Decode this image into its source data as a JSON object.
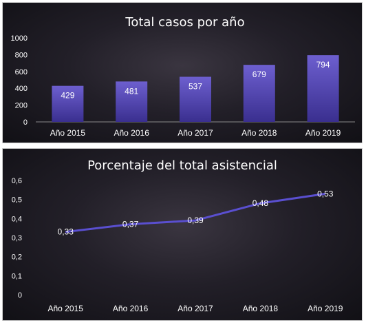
{
  "chart_data": [
    {
      "type": "bar",
      "title": "Total casos por año",
      "categories": [
        "Año 2015",
        "Año 2016",
        "Año 2017",
        "Año 2018",
        "Año 2019"
      ],
      "values": [
        429,
        481,
        537,
        679,
        794
      ],
      "data_labels": [
        "429",
        "481",
        "537",
        "679",
        "794"
      ],
      "ylim": [
        0,
        1000
      ],
      "yticks": [
        "0",
        "200",
        "400",
        "600",
        "800",
        "1000"
      ],
      "xlabel": "",
      "ylabel": "",
      "grid": false,
      "colors": {
        "bar_top": "#6d5fcf",
        "bar_bottom": "#3a2f8f",
        "background": "#1c1a22"
      }
    },
    {
      "type": "line",
      "title": "Porcentaje del total asistencial",
      "categories": [
        "Año 2015",
        "Año 2016",
        "Año 2017",
        "Año 2018",
        "Año 2019"
      ],
      "values": [
        0.33,
        0.37,
        0.39,
        0.48,
        0.53
      ],
      "data_labels": [
        "0,33",
        "0,37",
        "0,39",
        "0,48",
        "0,53"
      ],
      "ylim": [
        0,
        0.6
      ],
      "yticks": [
        "0",
        "0,1",
        "0,2",
        "0,3",
        "0,4",
        "0,5",
        "0,6"
      ],
      "xlabel": "",
      "ylabel": "",
      "grid": false,
      "colors": {
        "line": "#5a4fd0",
        "background": "#1c1a22"
      }
    }
  ]
}
